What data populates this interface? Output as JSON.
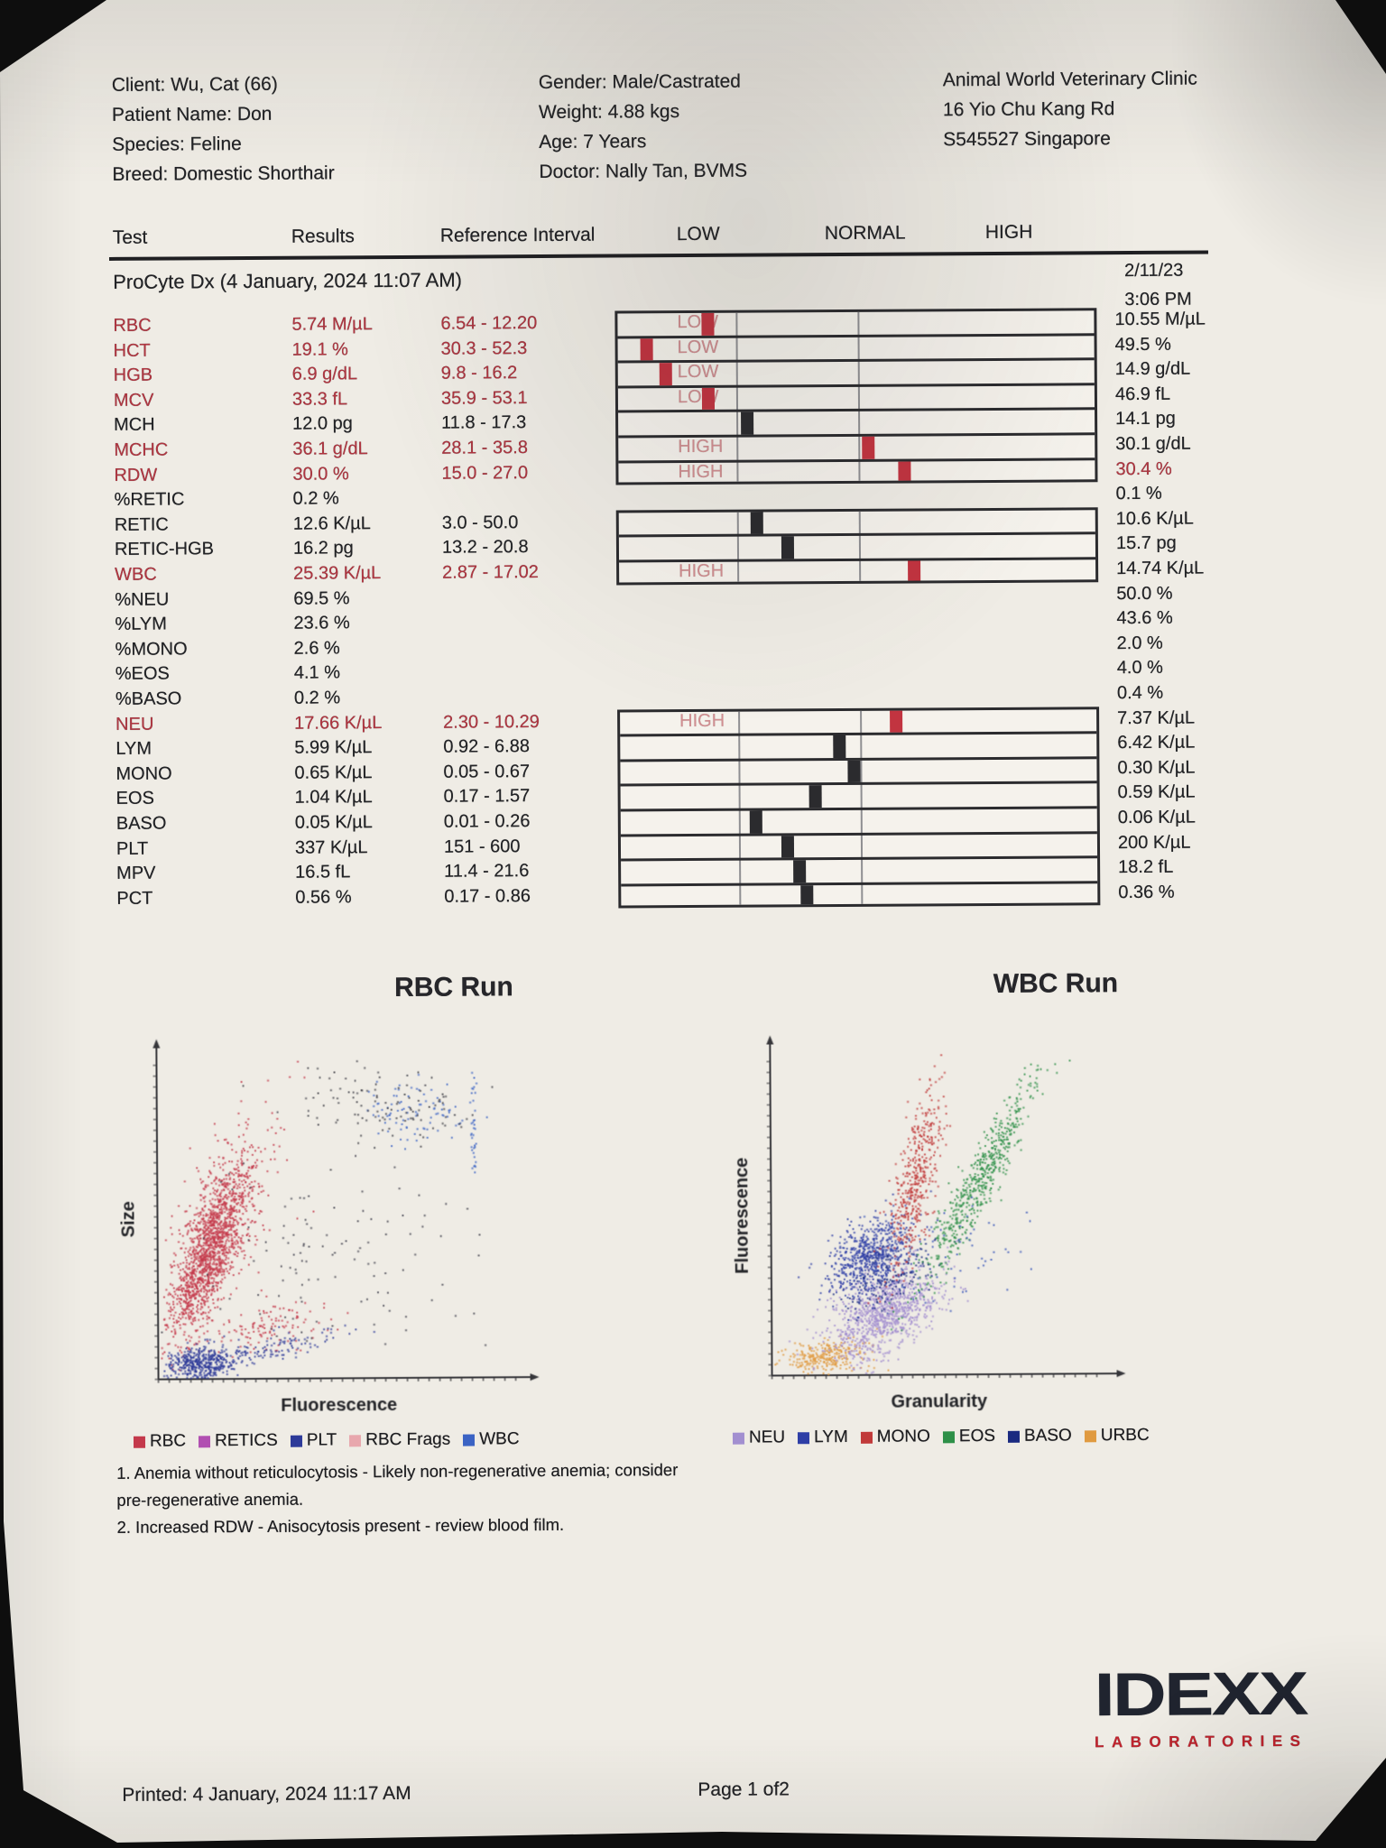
{
  "header": {
    "patient_block": [
      "Client: Wu, Cat (66)",
      "Patient Name: Don",
      "Species: Feline",
      "Breed: Domestic Shorthair"
    ],
    "details_block": [
      "Gender: Male/Castrated",
      "Weight: 4.88 kgs",
      "Age: 7 Years",
      "Doctor: Nally Tan, BVMS"
    ],
    "clinic_block": [
      "Animal World Veterinary Clinic",
      "16 Yio Chu Kang Rd",
      "S545527 Singapore"
    ]
  },
  "results_table": {
    "columns": [
      "Test",
      "Results",
      "Reference Interval",
      "LOW",
      "NORMAL",
      "HIGH"
    ],
    "section_title": "ProCyte Dx (4 January, 2024 11:07 AM)",
    "previous_run": {
      "date": "2/11/23",
      "time": "3:06 PM"
    },
    "bar_groups": [
      {
        "from": 0,
        "to": 6
      },
      {
        "from": 8,
        "to": 10
      },
      {
        "from": 16,
        "to": 23
      }
    ],
    "rows": [
      {
        "test": "RBC",
        "result": "5.74 M/µL",
        "ref": "6.54 - 12.20",
        "flag": "LOW",
        "abnormal": true,
        "marker": {
          "pos": 0.19,
          "red": true
        },
        "previous": "10.55 M/µL",
        "prev_abnormal": false
      },
      {
        "test": "HCT",
        "result": "19.1 %",
        "ref": "30.3 - 52.3",
        "flag": "LOW",
        "abnormal": true,
        "marker": {
          "pos": 0.06,
          "red": true
        },
        "previous": "49.5 %",
        "prev_abnormal": false
      },
      {
        "test": "HGB",
        "result": "6.9 g/dL",
        "ref": "9.8 - 16.2",
        "flag": "LOW",
        "abnormal": true,
        "marker": {
          "pos": 0.1,
          "red": true
        },
        "previous": "14.9 g/dL",
        "prev_abnormal": false
      },
      {
        "test": "MCV",
        "result": "33.3 fL",
        "ref": "35.9 - 53.1",
        "flag": "LOW",
        "abnormal": true,
        "marker": {
          "pos": 0.19,
          "red": true
        },
        "previous": "46.9 fL",
        "prev_abnormal": false
      },
      {
        "test": "MCH",
        "result": "12.0 pg",
        "ref": "11.8 - 17.3",
        "flag": "",
        "abnormal": false,
        "marker": {
          "pos": 0.27,
          "red": false
        },
        "previous": "14.1 pg",
        "prev_abnormal": false
      },
      {
        "test": "MCHC",
        "result": "36.1 g/dL",
        "ref": "28.1 - 35.8",
        "flag": "HIGH",
        "abnormal": true,
        "marker": {
          "pos": 0.525,
          "red": true
        },
        "previous": "30.1 g/dL",
        "prev_abnormal": false
      },
      {
        "test": "RDW",
        "result": "30.0 %",
        "ref": "15.0 - 27.0",
        "flag": "HIGH",
        "abnormal": true,
        "marker": {
          "pos": 0.6,
          "red": true
        },
        "previous": "30.4 %",
        "prev_abnormal": true
      },
      {
        "test": "%RETIC",
        "result": "0.2 %",
        "ref": "",
        "flag": "",
        "abnormal": false,
        "marker": null,
        "previous": "0.1 %",
        "prev_abnormal": false
      },
      {
        "test": "RETIC",
        "result": "12.6 K/µL",
        "ref": "3.0 - 50.0",
        "flag": "",
        "abnormal": false,
        "marker": {
          "pos": 0.29,
          "red": false
        },
        "previous": "10.6 K/µL",
        "prev_abnormal": false
      },
      {
        "test": "RETIC-HGB",
        "result": "16.2 pg",
        "ref": "13.2 - 20.8",
        "flag": "",
        "abnormal": false,
        "marker": {
          "pos": 0.355,
          "red": false
        },
        "previous": "15.7 pg",
        "prev_abnormal": false
      },
      {
        "test": "WBC",
        "result": "25.39 K/µL",
        "ref": "2.87 - 17.02",
        "flag": "HIGH",
        "abnormal": true,
        "marker": {
          "pos": 0.62,
          "red": true
        },
        "previous": "14.74 K/µL",
        "prev_abnormal": false
      },
      {
        "test": "%NEU",
        "result": "69.5 %",
        "ref": "",
        "flag": "",
        "abnormal": false,
        "marker": null,
        "previous": "50.0 %",
        "prev_abnormal": false
      },
      {
        "test": "%LYM",
        "result": "23.6 %",
        "ref": "",
        "flag": "",
        "abnormal": false,
        "marker": null,
        "previous": "43.6 %",
        "prev_abnormal": false
      },
      {
        "test": "%MONO",
        "result": "2.6 %",
        "ref": "",
        "flag": "",
        "abnormal": false,
        "marker": null,
        "previous": "2.0 %",
        "prev_abnormal": false
      },
      {
        "test": "%EOS",
        "result": "4.1 %",
        "ref": "",
        "flag": "",
        "abnormal": false,
        "marker": null,
        "previous": "4.0 %",
        "prev_abnormal": false
      },
      {
        "test": "%BASO",
        "result": "0.2 %",
        "ref": "",
        "flag": "",
        "abnormal": false,
        "marker": null,
        "previous": "0.4 %",
        "prev_abnormal": false
      },
      {
        "test": "NEU",
        "result": "17.66 K/µL",
        "ref": "2.30 - 10.29",
        "flag": "HIGH",
        "abnormal": true,
        "marker": {
          "pos": 0.58,
          "red": true
        },
        "previous": "7.37 K/µL",
        "prev_abnormal": false
      },
      {
        "test": "LYM",
        "result": "5.99 K/µL",
        "ref": "0.92 - 6.88",
        "flag": "",
        "abnormal": false,
        "marker": {
          "pos": 0.46,
          "red": false
        },
        "previous": "6.42 K/µL",
        "prev_abnormal": false
      },
      {
        "test": "MONO",
        "result": "0.65 K/µL",
        "ref": "0.05 - 0.67",
        "flag": "",
        "abnormal": false,
        "marker": {
          "pos": 0.49,
          "red": false
        },
        "previous": "0.30 K/µL",
        "prev_abnormal": false
      },
      {
        "test": "EOS",
        "result": "1.04 K/µL",
        "ref": "0.17 - 1.57",
        "flag": "",
        "abnormal": false,
        "marker": {
          "pos": 0.41,
          "red": false
        },
        "previous": "0.59 K/µL",
        "prev_abnormal": false
      },
      {
        "test": "BASO",
        "result": "0.05 K/µL",
        "ref": "0.01 - 0.26",
        "flag": "",
        "abnormal": false,
        "marker": {
          "pos": 0.285,
          "red": false
        },
        "previous": "0.06 K/µL",
        "prev_abnormal": false
      },
      {
        "test": "PLT",
        "result": "337 K/µL",
        "ref": "151 - 600",
        "flag": "",
        "abnormal": false,
        "marker": {
          "pos": 0.35,
          "red": false
        },
        "previous": "200 K/µL",
        "prev_abnormal": false
      },
      {
        "test": "MPV",
        "result": "16.5 fL",
        "ref": "11.4 - 21.6",
        "flag": "",
        "abnormal": false,
        "marker": {
          "pos": 0.375,
          "red": false
        },
        "previous": "18.2 fL",
        "prev_abnormal": false
      },
      {
        "test": "PCT",
        "result": "0.56 %",
        "ref": "0.17 - 0.86",
        "flag": "",
        "abnormal": false,
        "marker": {
          "pos": 0.39,
          "red": false
        },
        "previous": "0.36 %",
        "prev_abnormal": false
      }
    ]
  },
  "colors": {
    "abnormal_red": "#b03540",
    "marker_red": "#c23440",
    "marker_black": "#2b2b2e",
    "logo_red": "#c2242e"
  },
  "chart_data": [
    {
      "type": "scatter",
      "title": "RBC Run",
      "xlabel": "Fluorescence",
      "ylabel": "Size",
      "legend": [
        {
          "label": "RBC",
          "color": "#c4394b"
        },
        {
          "label": "RETICS",
          "color": "#b14fb1"
        },
        {
          "label": "PLT",
          "color": "#2d3a99"
        },
        {
          "label": "RBC Frags",
          "color": "#e8a7ad"
        },
        {
          "label": "WBC",
          "color": "#3b63c4"
        }
      ],
      "clusters": [
        {
          "name": "rbc-core",
          "color": "#c4394b",
          "n": 1400,
          "cx": 0.145,
          "cy": 0.4,
          "rot": 72,
          "sa": 0.145,
          "sp": 0.034
        },
        {
          "name": "rbc-halo",
          "color": "#c4394b",
          "n": 300,
          "cx": 0.175,
          "cy": 0.52,
          "rot": 70,
          "sa": 0.16,
          "sp": 0.06
        },
        {
          "name": "rbc-low-tail",
          "color": "#c4394b",
          "n": 120,
          "cx": 0.3,
          "cy": 0.16,
          "rot": 10,
          "sa": 0.09,
          "sp": 0.035
        },
        {
          "name": "plt",
          "color": "#2d3a99",
          "n": 400,
          "cx": 0.115,
          "cy": 0.055,
          "rot": 5,
          "sa": 0.05,
          "sp": 0.025
        },
        {
          "name": "plt-tail",
          "color": "#2d3a99",
          "n": 140,
          "cx": 0.28,
          "cy": 0.09,
          "rot": 15,
          "sa": 0.11,
          "sp": 0.02
        },
        {
          "name": "mid-scatter",
          "color": "#41414d",
          "n": 110,
          "cx": 0.47,
          "cy": 0.38,
          "rot": 0,
          "sa": 0.2,
          "sp": 0.15
        },
        {
          "name": "wbc-cluster",
          "color": "#3b63c4",
          "n": 90,
          "cx": 0.72,
          "cy": 0.83,
          "rot": 0,
          "sa": 0.08,
          "sp": 0.05
        },
        {
          "name": "wbc-dark",
          "color": "#3c3c44",
          "n": 80,
          "cx": 0.67,
          "cy": 0.83,
          "rot": 0,
          "sa": 0.11,
          "sp": 0.06
        },
        {
          "name": "wbc-line",
          "color": "#3b63c4",
          "n": 35,
          "cx": 0.875,
          "cy": 0.78,
          "rot": 90,
          "sa": 0.1,
          "sp": 0.004
        },
        {
          "name": "top-sparse",
          "color": "#44444c",
          "n": 30,
          "cx": 0.55,
          "cy": 0.9,
          "rot": 0,
          "sa": 0.12,
          "sp": 0.05
        }
      ]
    },
    {
      "type": "scatter",
      "title": "WBC Run",
      "xlabel": "Granularity",
      "ylabel": "Fluorescence",
      "legend": [
        {
          "label": "NEU",
          "color": "#a28fd0"
        },
        {
          "label": "LYM",
          "color": "#2e3ea6"
        },
        {
          "label": "MONO",
          "color": "#c13a3a"
        },
        {
          "label": "EOS",
          "color": "#2e9048"
        },
        {
          "label": "BASO",
          "color": "#1a2a80"
        },
        {
          "label": "URBC",
          "color": "#e09a40"
        }
      ],
      "clusters": [
        {
          "name": "urbc",
          "color": "#e09a40",
          "n": 280,
          "cx": 0.155,
          "cy": 0.06,
          "rot": 5,
          "sa": 0.06,
          "sp": 0.025
        },
        {
          "name": "neu",
          "color": "#a28fd0",
          "n": 1000,
          "cx": 0.335,
          "cy": 0.2,
          "rot": 35,
          "sa": 0.095,
          "sp": 0.055
        },
        {
          "name": "lym",
          "color": "#2e3ea6",
          "n": 700,
          "cx": 0.3,
          "cy": 0.37,
          "rot": 45,
          "sa": 0.075,
          "sp": 0.05
        },
        {
          "name": "baso",
          "color": "#1a2a80",
          "n": 130,
          "cx": 0.35,
          "cy": 0.3,
          "rot": 30,
          "sa": 0.08,
          "sp": 0.04
        },
        {
          "name": "mono",
          "color": "#c13a3a",
          "n": 450,
          "cx": 0.43,
          "cy": 0.62,
          "rot": 78,
          "sa": 0.15,
          "sp": 0.028
        },
        {
          "name": "eos",
          "color": "#2e9048",
          "n": 600,
          "cx": 0.62,
          "cy": 0.6,
          "rot": 62,
          "sa": 0.185,
          "sp": 0.027
        },
        {
          "name": "stray-blue",
          "color": "#3452b8",
          "n": 60,
          "cx": 0.55,
          "cy": 0.4,
          "rot": 0,
          "sa": 0.14,
          "sp": 0.1
        }
      ]
    }
  ],
  "notes": [
    "1. Anemia without reticulocytosis - Likely non-regenerative anemia; consider",
    "pre-regenerative anemia.",
    "2. Increased RDW - Anisocytosis present - review blood film."
  ],
  "footer": {
    "printed_label": "Printed: 4 January, 2024 11:17 AM",
    "page_label": "Page 1 of2",
    "logo_text": "IDEXX",
    "logo_subtext": "LABORATORIES"
  }
}
